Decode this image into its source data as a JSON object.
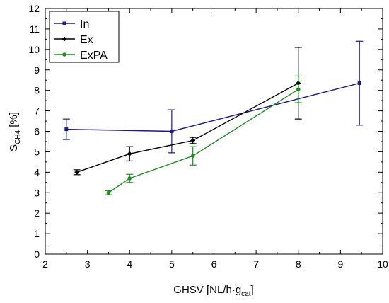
{
  "chart_data": {
    "type": "line",
    "xlabel": {
      "main": "GHSV [NL/h·g",
      "sub": "cat",
      "tail": "]"
    },
    "ylabel": {
      "main": "S",
      "sub": "CH4",
      "tail": " [%]"
    },
    "xlim": [
      2,
      10
    ],
    "ylim": [
      0,
      12
    ],
    "xticks": [
      2,
      3,
      4,
      5,
      6,
      7,
      8,
      9,
      10
    ],
    "yticks": [
      0,
      1,
      2,
      3,
      4,
      5,
      6,
      7,
      8,
      9,
      10,
      11,
      12
    ],
    "grid": false,
    "legend_position": "top-left",
    "series": [
      {
        "name": "In",
        "color": "#1a1a8c",
        "marker": "square",
        "x": [
          2.5,
          5.0,
          9.45
        ],
        "y": [
          6.1,
          6.0,
          8.35
        ],
        "err": [
          0.5,
          1.05,
          2.05
        ]
      },
      {
        "name": "Ex",
        "color": "#000000",
        "marker": "diamond",
        "x": [
          2.75,
          4.0,
          5.5,
          8.0
        ],
        "y": [
          4.0,
          4.9,
          5.55,
          8.35
        ],
        "err": [
          0.12,
          0.35,
          0.15,
          1.75
        ]
      },
      {
        "name": "ExPA",
        "color": "#1e8c1e",
        "marker": "circle",
        "x": [
          3.5,
          4.0,
          5.5,
          8.0
        ],
        "y": [
          3.0,
          3.7,
          4.8,
          8.05
        ],
        "err": [
          0.1,
          0.2,
          0.45,
          0.65
        ]
      }
    ]
  }
}
